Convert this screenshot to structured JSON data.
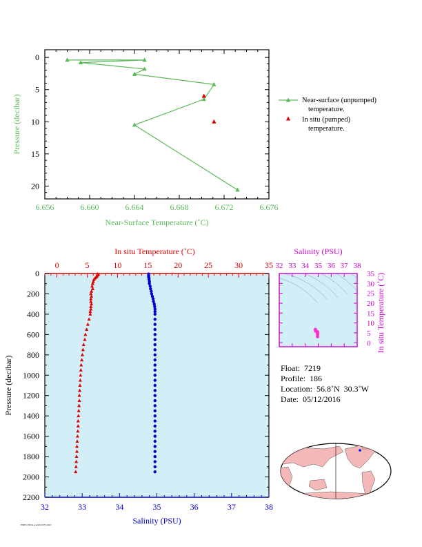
{
  "colors": {
    "green": "#5cb85c",
    "red": "#dd0000",
    "blue": "#0000cc",
    "magenta": "#cc00cc",
    "panel_bg": "#d2eef7",
    "land": "#f4b8b8",
    "ocean": "#ffffff"
  },
  "top_chart": {
    "type": "line",
    "xlabel": "Near-Surface Temperature (˚C)",
    "ylabel": "Pressure (decibar)",
    "xlim": [
      6.656,
      6.676
    ],
    "ylim": [
      22,
      -1.2
    ],
    "xticks": [
      "6.656",
      "6.660",
      "6.664",
      "6.668",
      "6.672",
      "6.676"
    ],
    "yticks": [
      "0",
      "5",
      "10",
      "15",
      "20"
    ],
    "series": [
      {
        "legend_line1": "Near-surface (unpumped)",
        "legend_line2": "temperature.",
        "style": "line-triangle",
        "x": [
          6.658,
          6.6649,
          6.6592,
          6.6649,
          6.664,
          6.6711,
          6.6702,
          6.664,
          6.6732
        ],
        "y": [
          0.4,
          0.4,
          0.8,
          1.8,
          2.6,
          4.2,
          6.5,
          10.5,
          20.6
        ]
      },
      {
        "legend_line1": "In situ (pumped)",
        "legend_line2": "temperature.",
        "style": "point-triangle",
        "x": [
          6.6702,
          6.6711
        ],
        "y": [
          6.0,
          10.0
        ]
      }
    ]
  },
  "main_chart": {
    "type": "scatter",
    "ylabel": "Pressure (decibar)",
    "temp_label": "In situ Temperature (˚C)",
    "sal_label": "Salinity (PSU)",
    "temp_lim": [
      -2,
      35
    ],
    "sal_lim": [
      32,
      38
    ],
    "p_lim": [
      0,
      2200
    ],
    "temp_ticks": [
      "0",
      "5",
      "10",
      "15",
      "20",
      "25",
      "30",
      "35"
    ],
    "sal_ticks": [
      "32",
      "33",
      "34",
      "35",
      "36",
      "37",
      "38"
    ],
    "p_ticks": [
      "0",
      "200",
      "400",
      "600",
      "800",
      "1000",
      "1200",
      "1400",
      "1600",
      "1800",
      "2000",
      "2200"
    ],
    "temperature": {
      "p": [
        5,
        15,
        25,
        35,
        45,
        60,
        80,
        100,
        125,
        150,
        175,
        200,
        225,
        250,
        275,
        300,
        325,
        350,
        375,
        400,
        450,
        500,
        550,
        600,
        650,
        700,
        750,
        800,
        850,
        900,
        950,
        1000,
        1050,
        1100,
        1150,
        1200,
        1250,
        1300,
        1350,
        1400,
        1450,
        1500,
        1550,
        1600,
        1650,
        1700,
        1750,
        1800,
        1850,
        1900,
        1950
      ],
      "t": [
        6.7,
        6.8,
        6.6,
        6.5,
        6.3,
        6.1,
        6.0,
        5.9,
        5.8,
        5.9,
        5.7,
        5.6,
        5.7,
        5.6,
        5.6,
        5.7,
        5.6,
        5.6,
        5.5,
        5.5,
        5.3,
        5.1,
        4.9,
        4.7,
        4.6,
        4.4,
        4.3,
        4.2,
        4.1,
        4.0,
        3.95,
        3.9,
        3.85,
        3.8,
        3.75,
        3.7,
        3.7,
        3.65,
        3.6,
        3.55,
        3.5,
        3.5,
        3.45,
        3.4,
        3.35,
        3.3,
        3.3,
        3.25,
        3.2,
        3.15,
        3.1
      ]
    },
    "salinity": {
      "p": [
        5,
        15,
        25,
        35,
        45,
        60,
        80,
        100,
        125,
        150,
        175,
        200,
        225,
        250,
        275,
        300,
        325,
        350,
        375,
        400,
        450,
        500,
        550,
        600,
        650,
        700,
        750,
        800,
        850,
        900,
        950,
        1000,
        1050,
        1100,
        1150,
        1200,
        1250,
        1300,
        1350,
        1400,
        1450,
        1500,
        1550,
        1600,
        1650,
        1700,
        1750,
        1800,
        1850,
        1900,
        1950
      ],
      "s": [
        34.78,
        34.78,
        34.78,
        34.78,
        34.79,
        34.79,
        34.8,
        34.8,
        34.82,
        34.83,
        34.85,
        34.86,
        34.88,
        34.9,
        34.91,
        34.93,
        34.94,
        34.95,
        34.95,
        34.95,
        34.95,
        34.95,
        34.95,
        34.95,
        34.95,
        34.95,
        34.95,
        34.95,
        34.95,
        34.95,
        34.95,
        34.95,
        34.95,
        34.95,
        34.95,
        34.95,
        34.95,
        34.95,
        34.95,
        34.95,
        34.95,
        34.95,
        34.95,
        34.95,
        34.95,
        34.95,
        34.95,
        34.95,
        34.95,
        34.95,
        34.95
      ]
    }
  },
  "ts_chart": {
    "type": "scatter",
    "xlabel": "Salinity (PSU)",
    "ylabel": "In situ Temperature (˚C)",
    "xlim": [
      32,
      38
    ],
    "ylim": [
      -2,
      35
    ],
    "xticks": [
      "32",
      "33",
      "34",
      "35",
      "36",
      "37",
      "38"
    ],
    "yticks": [
      "0",
      "5",
      "10",
      "15",
      "20",
      "25",
      "30",
      "35"
    ],
    "points_s": [
      34.78,
      34.8,
      34.85,
      34.9,
      34.95,
      34.95,
      34.95,
      34.95
    ],
    "points_t": [
      6.7,
      6.0,
      5.7,
      5.6,
      5.4,
      4.8,
      4.2,
      3.1
    ]
  },
  "float_info": {
    "float": "Float:  7219",
    "profile": "Profile:  186",
    "location": "Location:  56.8˚N  30.3˚W",
    "date": "Date:  05/12/2016"
  },
  "footer_text": "PMEL/NOAA ARGO FLOAT"
}
